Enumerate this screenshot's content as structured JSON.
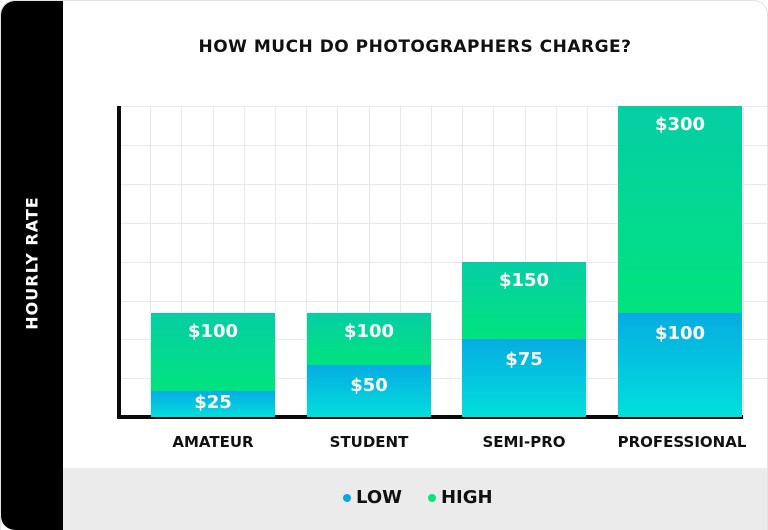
{
  "chart_data": {
    "type": "bar",
    "stacked": true,
    "title": "HOW MUCH DO PHOTOGRAPHERS CHARGE?",
    "xlabel": "",
    "ylabel": "HOURLY RATE",
    "categories": [
      "AMATEUR",
      "STUDENT",
      "SEMI-PRO",
      "PROFESSIONAL"
    ],
    "series": [
      {
        "name": "LOW",
        "values": [
          25,
          50,
          75,
          100
        ],
        "labels": [
          "$25",
          "$50",
          "$75",
          "$100"
        ],
        "color": "#06ace2"
      },
      {
        "name": "HIGH",
        "values": [
          100,
          100,
          150,
          300
        ],
        "labels": [
          "$100",
          "$100",
          "$150",
          "$300"
        ],
        "color": "#02e37e"
      }
    ],
    "ylim": [
      0,
      300
    ],
    "grid": true,
    "legend_position": "bottom"
  },
  "colors": {
    "low_top": "#06ace2",
    "low_bottom": "#02dfdc",
    "high_top": "#05cea5",
    "high_bottom": "#02e37e",
    "sidebar": "#000000",
    "legend_bg": "#ebebeb"
  },
  "legend": [
    {
      "label": "LOW",
      "color": "#0aa6e6"
    },
    {
      "label": "HIGH",
      "color": "#0ee07c"
    }
  ]
}
